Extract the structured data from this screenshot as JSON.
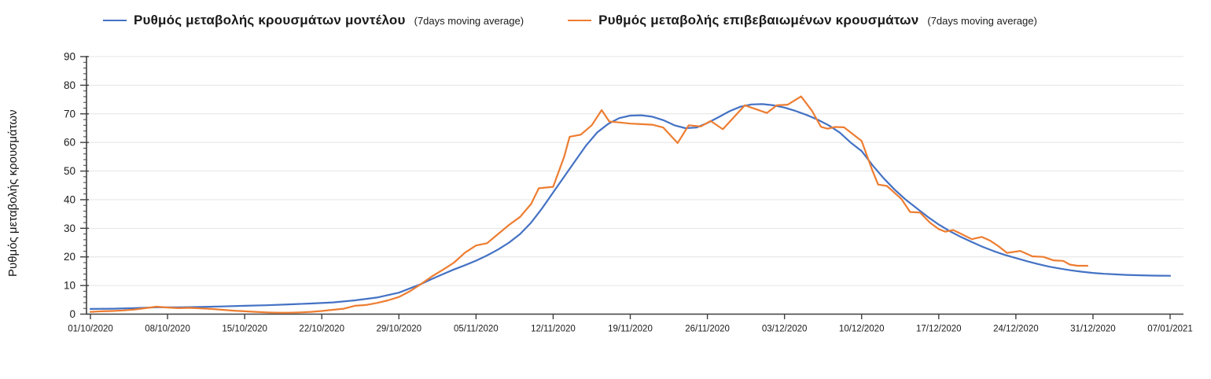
{
  "legend": [
    {
      "label": "Ρυθμός μεταβολής κρουσμάτων μοντέλου",
      "suffix": "(7days moving average)",
      "color": "#4472c4"
    },
    {
      "label": "Ρυθμός μεταβολής επιβεβαιωμένων κρουσμάτων",
      "suffix": "(7days moving average)",
      "color": "#ed7d31"
    }
  ],
  "chart_data": {
    "type": "line",
    "title": "",
    "xlabel": "",
    "ylabel": "Ρυθμός μεταβολής κρουσμάτων",
    "ylim": [
      0,
      90
    ],
    "y_ticks": [
      0,
      10,
      20,
      30,
      40,
      50,
      60,
      70,
      80,
      90
    ],
    "y_minor_step": 2,
    "grid": "horizontal",
    "legend_position": "top",
    "x_tick_labels": [
      "01/10/2020",
      "08/10/2020",
      "15/10/2020",
      "22/10/2020",
      "29/10/2020",
      "05/11/2020",
      "12/11/2020",
      "19/11/2020",
      "26/11/2020",
      "03/12/2020",
      "10/12/2020",
      "17/12/2020",
      "24/12/2020",
      "31/12/2020",
      "07/01/2021"
    ],
    "x_tick_days": [
      0,
      7,
      14,
      21,
      28,
      35,
      42,
      49,
      56,
      63,
      70,
      77,
      84,
      91,
      98
    ],
    "x_range_days": [
      0,
      98
    ],
    "colors": {
      "grid": "#e4e4e4",
      "axis": "#3f3f3f",
      "tick_text": "#1a1a1a"
    },
    "series": [
      {
        "name": "Ρυθμός μεταβολής κρουσμάτων μοντέλου (7days moving average)",
        "color": "#4472c4",
        "points": [
          [
            0,
            1.8
          ],
          [
            2,
            1.9
          ],
          [
            4,
            2.1
          ],
          [
            6,
            2.4
          ],
          [
            8,
            2.4
          ],
          [
            10,
            2.5
          ],
          [
            12,
            2.7
          ],
          [
            14,
            2.9
          ],
          [
            16,
            3.1
          ],
          [
            18,
            3.4
          ],
          [
            20,
            3.7
          ],
          [
            22,
            4.1
          ],
          [
            24,
            4.8
          ],
          [
            26,
            5.8
          ],
          [
            28,
            7.5
          ],
          [
            30,
            10.5
          ],
          [
            31,
            12.3
          ],
          [
            32,
            14
          ],
          [
            33,
            15.6
          ],
          [
            34,
            17.1
          ],
          [
            35,
            18.7
          ],
          [
            36,
            20.5
          ],
          [
            37,
            22.6
          ],
          [
            38,
            25
          ],
          [
            39,
            28
          ],
          [
            40,
            32
          ],
          [
            41,
            37
          ],
          [
            42,
            42.5
          ],
          [
            43,
            48
          ],
          [
            44,
            53.5
          ],
          [
            45,
            59
          ],
          [
            46,
            63.5
          ],
          [
            47,
            66.5
          ],
          [
            48,
            68.5
          ],
          [
            49,
            69.4
          ],
          [
            50,
            69.5
          ],
          [
            51,
            69
          ],
          [
            52,
            67.8
          ],
          [
            53,
            66
          ],
          [
            54,
            65
          ],
          [
            55,
            65.2
          ],
          [
            56,
            66.8
          ],
          [
            57,
            68.8
          ],
          [
            58,
            70.9
          ],
          [
            59,
            72.5
          ],
          [
            60,
            73.3
          ],
          [
            61,
            73.4
          ],
          [
            62,
            73
          ],
          [
            63,
            72.2
          ],
          [
            64,
            71
          ],
          [
            65,
            69.6
          ],
          [
            66,
            68
          ],
          [
            67,
            66
          ],
          [
            68,
            63.5
          ],
          [
            69,
            60
          ],
          [
            70,
            57
          ],
          [
            71,
            52
          ],
          [
            72,
            47.5
          ],
          [
            73,
            43.5
          ],
          [
            74,
            40
          ],
          [
            75,
            37
          ],
          [
            76,
            34
          ],
          [
            77,
            31.3
          ],
          [
            78,
            29
          ],
          [
            79,
            27
          ],
          [
            80,
            25.2
          ],
          [
            81,
            23.5
          ],
          [
            82,
            22
          ],
          [
            83,
            20.7
          ],
          [
            84,
            19.6
          ],
          [
            85,
            18.5
          ],
          [
            86,
            17.5
          ],
          [
            87,
            16.6
          ],
          [
            88,
            15.9
          ],
          [
            89,
            15.3
          ],
          [
            90,
            14.8
          ],
          [
            91,
            14.4
          ],
          [
            92,
            14.1
          ],
          [
            93,
            13.9
          ],
          [
            94,
            13.7
          ],
          [
            95,
            13.6
          ],
          [
            96,
            13.5
          ],
          [
            97,
            13.45
          ],
          [
            98,
            13.4
          ]
        ]
      },
      {
        "name": "Ρυθμός μεταβολής επιβεβαιωμένων κρουσμάτων (7days moving average)",
        "color": "#ed7d31",
        "points": [
          [
            0,
            0.8
          ],
          [
            1,
            1
          ],
          [
            2,
            1.1
          ],
          [
            3,
            1.3
          ],
          [
            4,
            1.6
          ],
          [
            5,
            2.1
          ],
          [
            6,
            2.6
          ],
          [
            7,
            2.3
          ],
          [
            8,
            2.1
          ],
          [
            9,
            2.2
          ],
          [
            10,
            2
          ],
          [
            11,
            1.8
          ],
          [
            12,
            1.5
          ],
          [
            13,
            1.2
          ],
          [
            14,
            1
          ],
          [
            15,
            0.8
          ],
          [
            16,
            0.6
          ],
          [
            17,
            0.5
          ],
          [
            18,
            0.5
          ],
          [
            19,
            0.6
          ],
          [
            20,
            0.8
          ],
          [
            21,
            1.1
          ],
          [
            22,
            1.5
          ],
          [
            23,
            1.9
          ],
          [
            24,
            2.9
          ],
          [
            25,
            3.2
          ],
          [
            26,
            3.9
          ],
          [
            27,
            4.8
          ],
          [
            28,
            6
          ],
          [
            29,
            8
          ],
          [
            30,
            10.5
          ],
          [
            31,
            13.2
          ],
          [
            32,
            15.5
          ],
          [
            33,
            18
          ],
          [
            34,
            21.5
          ],
          [
            35,
            24
          ],
          [
            36,
            24.8
          ],
          [
            37,
            28
          ],
          [
            38,
            31.2
          ],
          [
            39,
            34
          ],
          [
            40,
            38.5
          ],
          [
            40.7,
            44
          ],
          [
            42,
            44.5
          ],
          [
            43,
            55
          ],
          [
            43.5,
            62
          ],
          [
            44.5,
            62.7
          ],
          [
            45.5,
            66
          ],
          [
            46.4,
            71.3
          ],
          [
            47.1,
            67.3
          ],
          [
            48,
            67
          ],
          [
            49,
            66.6
          ],
          [
            50,
            66.4
          ],
          [
            51,
            66.2
          ],
          [
            52,
            65.2
          ],
          [
            53.3,
            59.8
          ],
          [
            54.3,
            66
          ],
          [
            55.4,
            65.6
          ],
          [
            56.3,
            67.5
          ],
          [
            57.4,
            64.6
          ],
          [
            59.4,
            73
          ],
          [
            61.4,
            70.3
          ],
          [
            62.3,
            73
          ],
          [
            63.3,
            73.2
          ],
          [
            64.5,
            76.1
          ],
          [
            65.5,
            71
          ],
          [
            66.3,
            65.5
          ],
          [
            66.9,
            64.8
          ],
          [
            67.6,
            65.4
          ],
          [
            68.4,
            65.3
          ],
          [
            70,
            60.5
          ],
          [
            71,
            50
          ],
          [
            71.5,
            45.3
          ],
          [
            72.3,
            44.8
          ],
          [
            73.6,
            40.3
          ],
          [
            74.4,
            35.7
          ],
          [
            75.3,
            35.5
          ],
          [
            76.2,
            32
          ],
          [
            77,
            29.7
          ],
          [
            77.6,
            28.8
          ],
          [
            78.3,
            29.4
          ],
          [
            78.9,
            28.3
          ],
          [
            80,
            26.2
          ],
          [
            80.9,
            27
          ],
          [
            81.7,
            25.6
          ],
          [
            82.4,
            23.8
          ],
          [
            83.2,
            21.4
          ],
          [
            84.4,
            22.1
          ],
          [
            85.5,
            20.2
          ],
          [
            86.5,
            20
          ],
          [
            87.4,
            18.8
          ],
          [
            88.3,
            18.6
          ],
          [
            88.9,
            17.3
          ],
          [
            89.6,
            16.9
          ],
          [
            90.5,
            16.9
          ]
        ]
      }
    ]
  }
}
